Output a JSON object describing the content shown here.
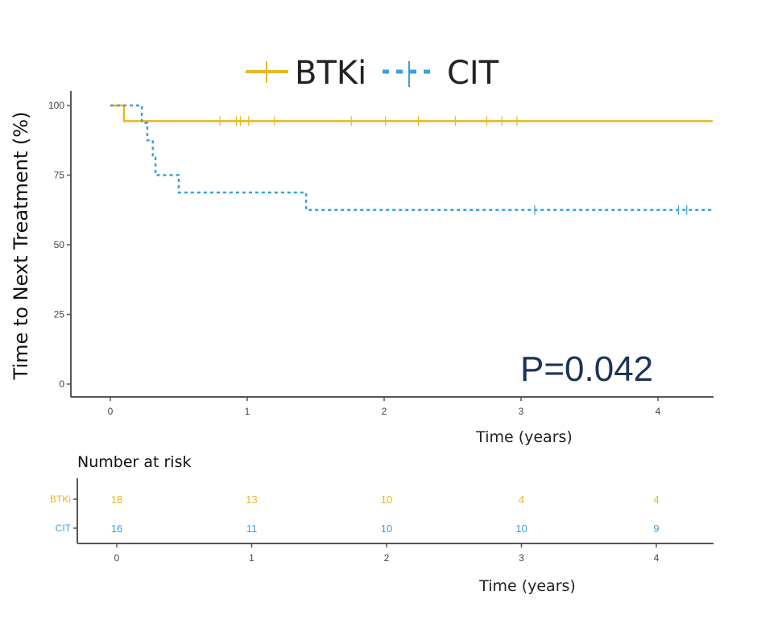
{
  "chart_data": {
    "type": "line",
    "subtype": "kaplan-meier",
    "title": "",
    "ylabel": "Time to Next Treatment (%)",
    "xlabel": "Time (years)",
    "xlim": [
      0,
      4.4
    ],
    "ylim": [
      0,
      100
    ],
    "xticks": [
      0,
      1,
      2,
      3,
      4
    ],
    "yticks": [
      0,
      25,
      50,
      75,
      100
    ],
    "grid": false,
    "legend": {
      "position": "top",
      "entries": [
        {
          "name": "BTKi",
          "color": "#e8b820",
          "style": "solid"
        },
        {
          "name": "CIT",
          "color": "#3aa0dc",
          "style": "dotted"
        }
      ]
    },
    "annotation": "P=0.042",
    "series": [
      {
        "name": "BTKi",
        "color": "#e8b820",
        "style": "solid",
        "steps": [
          {
            "x": 0,
            "y": 100
          },
          {
            "x": 0.1,
            "y": 94.4
          }
        ],
        "censor_times": [
          0.8,
          0.92,
          0.95,
          1.01,
          1.2,
          1.76,
          2.01,
          2.25,
          2.52,
          2.75,
          2.86,
          2.97
        ]
      },
      {
        "name": "CIT",
        "color": "#3aa0dc",
        "style": "dotted",
        "steps": [
          {
            "x": 0,
            "y": 100
          },
          {
            "x": 0.23,
            "y": 93.75
          },
          {
            "x": 0.27,
            "y": 87.5
          },
          {
            "x": 0.31,
            "y": 81.25
          },
          {
            "x": 0.33,
            "y": 75
          },
          {
            "x": 0.5,
            "y": 68.75
          },
          {
            "x": 1.43,
            "y": 62.5
          }
        ],
        "censor_times": [
          3.1,
          4.15,
          4.21
        ]
      }
    ],
    "risk_table": {
      "title": "Number at risk",
      "xlabel": "Time (years)",
      "times": [
        0,
        1,
        2,
        3,
        4
      ],
      "rows": [
        {
          "group": "BTKi",
          "color": "#e8b820",
          "values": [
            18,
            13,
            10,
            4,
            4
          ]
        },
        {
          "group": "CIT",
          "color": "#3aa0dc",
          "values": [
            16,
            11,
            10,
            10,
            9
          ]
        }
      ]
    }
  }
}
